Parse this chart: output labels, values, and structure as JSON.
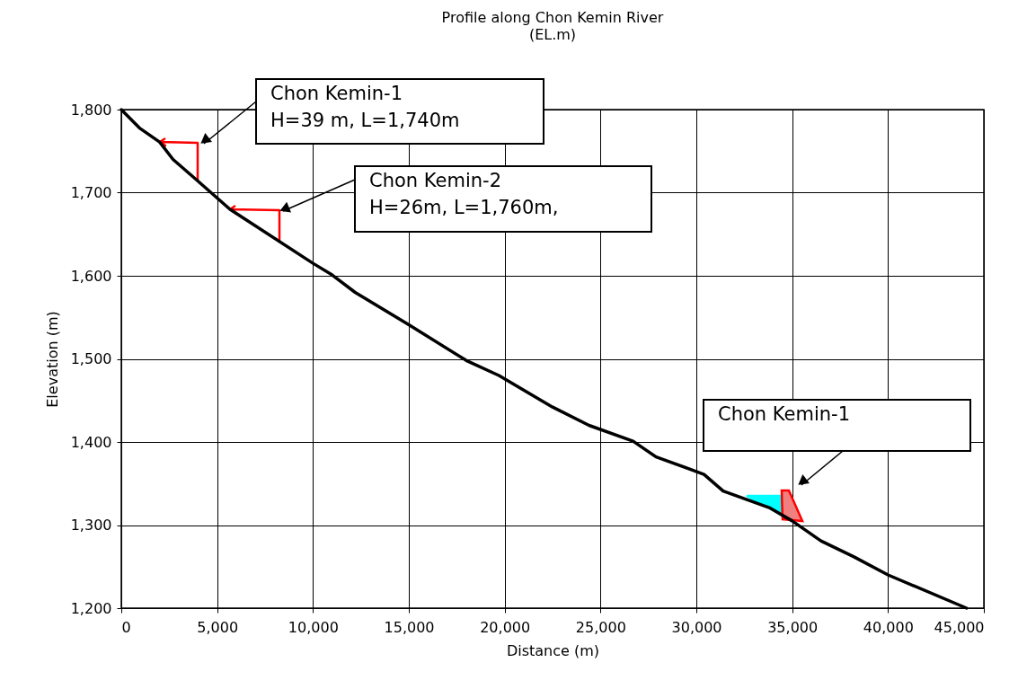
{
  "chart_data": {
    "type": "line",
    "title": "Profile along Chon Kemin River",
    "subtitle": "(EL.m)",
    "xlabel": "Distance (m)",
    "ylabel": "Elevation (m)",
    "x": [
      0,
      940,
      2000,
      2700,
      3900,
      5670,
      10000,
      11000,
      12200,
      15000,
      18000,
      19700,
      22500,
      24400,
      26700,
      27900,
      30400,
      31400,
      33800,
      35000,
      36500,
      38200,
      40000,
      44100
    ],
    "series": [
      {
        "color": "#000000",
        "values": [
          1800,
          1778,
          1761,
          1740,
          1716,
          1680,
          1615,
          1601,
          1580,
          1541,
          1498,
          1480,
          1442,
          1420,
          1401,
          1382,
          1361,
          1341,
          1321,
          1305,
          1281,
          1262,
          1240,
          1200
        ]
      }
    ],
    "xlim": [
      0,
      45000
    ],
    "ylim": [
      1200,
      1800
    ],
    "xticks": [
      0,
      {
        "value": 5000,
        "label": "5,000"
      },
      {
        "value": 10000,
        "label": "10,000"
      },
      {
        "value": 15000,
        "label": "15,000"
      },
      {
        "value": 20000,
        "label": "20,000"
      },
      {
        "value": 25000,
        "label": "25,000"
      },
      {
        "value": 30000,
        "label": "30,000"
      },
      {
        "value": 35000,
        "label": "35,000"
      },
      {
        "value": 40000,
        "label": "40,000"
      },
      {
        "value": 45000,
        "label": "45,000"
      }
    ],
    "yticks": [
      {
        "value": 1200,
        "label": "1,200"
      },
      {
        "value": 1300,
        "label": "1,300"
      },
      {
        "value": 1400,
        "label": "1,400"
      },
      {
        "value": 1500,
        "label": "1,500"
      },
      {
        "value": 1600,
        "label": "1,600"
      },
      {
        "value": 1700,
        "label": "1,700"
      },
      {
        "value": 1800,
        "label": "1,800"
      }
    ],
    "annotations": [
      "Chon Kemin-1\nH=39 m, L=1,740m",
      "Chon Kemin-2\nH=26m, L=1,760m,",
      "Chon Kemin-1"
    ],
    "grid": true,
    "legend": false,
    "marker": "none",
    "line_style": "solid"
  }
}
